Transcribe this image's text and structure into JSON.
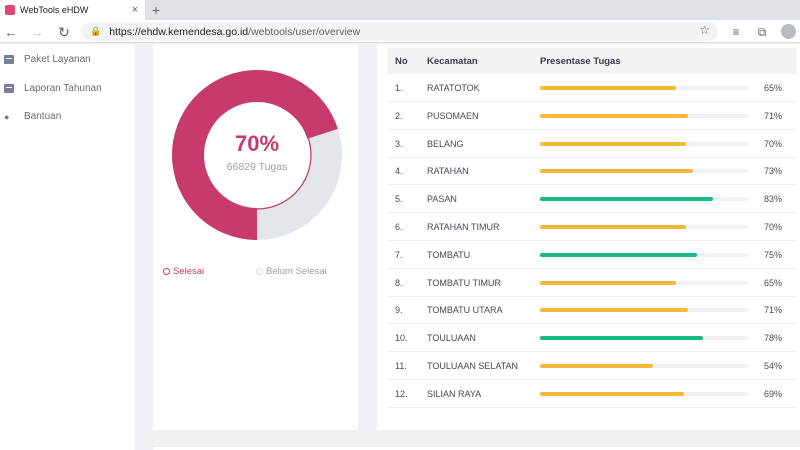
{
  "browser": {
    "tab_title": "WebTools eHDW",
    "close_glyph": "×",
    "new_tab_glyph": "+",
    "url_host": "https://ehdw.kemendesa.go.id",
    "url_path": "/webtools/user/overview"
  },
  "sidebar": {
    "items": [
      {
        "label": "Paket Layanan",
        "icon": "box-icon"
      },
      {
        "label": "Laporan Tahunan",
        "icon": "box-icon"
      },
      {
        "label": "Bantuan",
        "icon": "chat-icon"
      }
    ]
  },
  "summary": {
    "percent_label": "70%",
    "count_label": "66829 Tugas",
    "completed_fraction": 0.7,
    "legend": [
      {
        "label": "Selesai",
        "color": "#c73a6e"
      },
      {
        "label": "Belum Selesai",
        "color": "#d9dce2"
      }
    ]
  },
  "table": {
    "headers": [
      "No",
      "Kecamatan",
      "Presentase Tugas"
    ],
    "rows": [
      {
        "no": "1.",
        "name": "RATATOTOK",
        "value": 65,
        "pct": "65%"
      },
      {
        "no": "2.",
        "name": "PUSOMAEN",
        "value": 71,
        "pct": "71%"
      },
      {
        "no": "3.",
        "name": "BELANG",
        "value": 70,
        "pct": "70%"
      },
      {
        "no": "4.",
        "name": "RATAHAN",
        "value": 73,
        "pct": "73%"
      },
      {
        "no": "5.",
        "name": "PASAN",
        "value": 83,
        "pct": "83%"
      },
      {
        "no": "6.",
        "name": "RATAHAN TIMUR",
        "value": 70,
        "pct": "70%"
      },
      {
        "no": "7.",
        "name": "TOMBATU",
        "value": 75,
        "pct": "75%"
      },
      {
        "no": "8.",
        "name": "TOMBATU TIMUR",
        "value": 65,
        "pct": "65%"
      },
      {
        "no": "9.",
        "name": "TOMBATU UTARA",
        "value": 71,
        "pct": "71%"
      },
      {
        "no": "10.",
        "name": "TOULUAAN",
        "value": 78,
        "pct": "78%"
      },
      {
        "no": "11.",
        "name": "TOULUAAN SELATAN",
        "value": 54,
        "pct": "54%"
      },
      {
        "no": "12.",
        "name": "SILIAN RAYA",
        "value": 69,
        "pct": "69%"
      }
    ]
  },
  "colors": {
    "accent": "#c73a6e",
    "remaining": "#e3e6ea",
    "bar_default": "#f4b93a",
    "bar_high": "#19b884",
    "bar_track": "#f1f2f5"
  },
  "bar_high_threshold": 75
}
